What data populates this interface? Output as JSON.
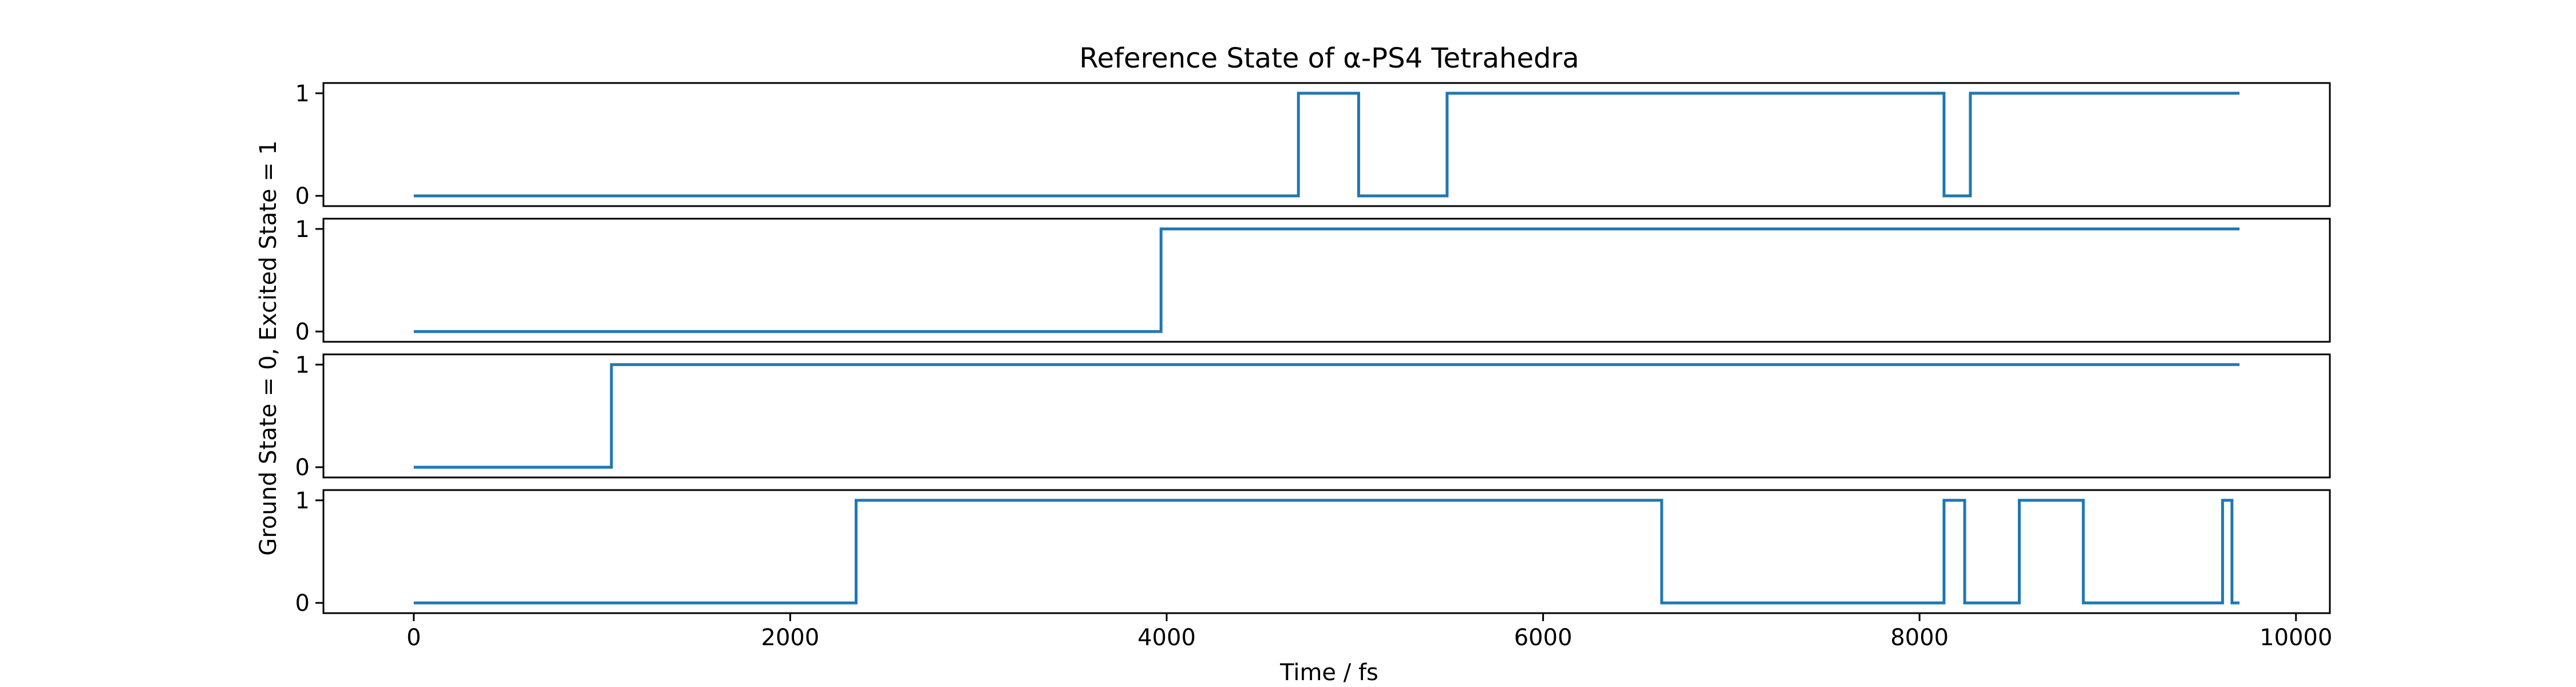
{
  "chart_data": {
    "type": "line",
    "title": "Reference State of α-PS4 Tetrahedra",
    "xlabel": "Time / fs",
    "ylabel": "Ground State = 0, Excited State = 1",
    "xlim": [
      -480,
      10180
    ],
    "ylim": [
      -0.1,
      1.1
    ],
    "x_ticks": [
      0,
      2000,
      4000,
      6000,
      8000,
      10000
    ],
    "x_tick_labels": [
      "0",
      "2000",
      "4000",
      "6000",
      "8000",
      "10000"
    ],
    "y_ticks": [
      0,
      1
    ],
    "y_tick_labels": [
      "0",
      "1"
    ],
    "grid": false,
    "line_color": "#1f77b4",
    "series": [
      {
        "values": [
          {
            "x": 0,
            "y": 0
          },
          {
            "x": 4700,
            "y": 1
          },
          {
            "x": 5020,
            "y": 0
          },
          {
            "x": 5490,
            "y": 1
          },
          {
            "x": 8130,
            "y": 0
          },
          {
            "x": 8270,
            "y": 1
          },
          {
            "x": 9700,
            "y": 1
          }
        ]
      },
      {
        "values": [
          {
            "x": 0,
            "y": 0
          },
          {
            "x": 3970,
            "y": 1
          },
          {
            "x": 9700,
            "y": 1
          }
        ]
      },
      {
        "values": [
          {
            "x": 0,
            "y": 0
          },
          {
            "x": 1050,
            "y": 1
          },
          {
            "x": 9700,
            "y": 1
          }
        ]
      },
      {
        "values": [
          {
            "x": 0,
            "y": 0
          },
          {
            "x": 2350,
            "y": 1
          },
          {
            "x": 6630,
            "y": 0
          },
          {
            "x": 8130,
            "y": 1
          },
          {
            "x": 8240,
            "y": 0
          },
          {
            "x": 8530,
            "y": 1
          },
          {
            "x": 8870,
            "y": 0
          },
          {
            "x": 9610,
            "y": 1
          },
          {
            "x": 9660,
            "y": 0
          },
          {
            "x": 9700,
            "y": 0
          }
        ]
      }
    ]
  }
}
